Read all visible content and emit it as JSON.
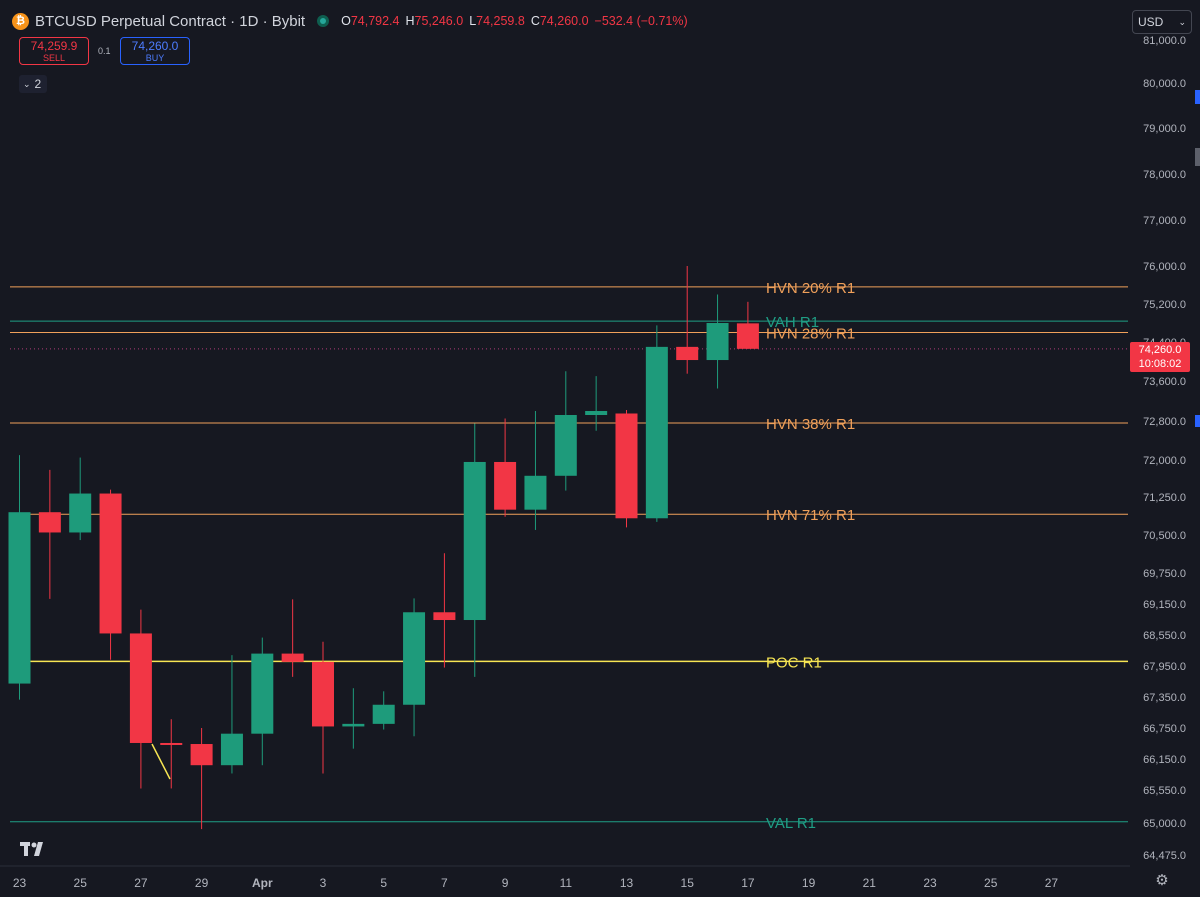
{
  "header": {
    "icon_glyph": "₿",
    "title": "BTCUSD Perpetual Contract · 1D · Bybit",
    "ohlc": {
      "o_label": "O",
      "o": "74,792.4",
      "h_label": "H",
      "h": "75,246.0",
      "l_label": "L",
      "l": "74,259.8",
      "c_label": "C",
      "c": "74,260.0",
      "change": "−532.4 (−0.71%)"
    }
  },
  "trade": {
    "sell_price": "74,259.9",
    "sell_label": "SELL",
    "spread": "0.1",
    "buy_price": "74,260.0",
    "buy_label": "BUY"
  },
  "indicators_toggle": {
    "count": "2"
  },
  "currency": {
    "selected": "USD"
  },
  "last_price": {
    "price": "74,260.0",
    "countdown": "10:08:02"
  },
  "icons": {
    "chevron": "chevron-down-icon",
    "logo": "tradingview-logo",
    "settings": "gear-icon"
  },
  "colors": {
    "background": "#161821",
    "up": "#1e9b7b",
    "down": "#f23645",
    "hvn_line": "#f0a05a",
    "poc_line": "#f7e553",
    "va_line": "#1f9e85"
  },
  "chart_data": {
    "type": "candlestick",
    "title": "BTCUSD Perpetual Contract · 1D · Bybit",
    "y_scale": "piecewise (non-uniform tick spacing)",
    "y_ticks": [
      {
        "label": "81,000.0",
        "value": 81000
      },
      {
        "label": "80,000.0",
        "value": 80000
      },
      {
        "label": "79,000.0",
        "value": 79000
      },
      {
        "label": "78,000.0",
        "value": 78000
      },
      {
        "label": "77,000.0",
        "value": 77000
      },
      {
        "label": "76,000.0",
        "value": 76000
      },
      {
        "label": "75,200.0",
        "value": 75200
      },
      {
        "label": "74,400.0",
        "value": 74400
      },
      {
        "label": "73,600.0",
        "value": 73600
      },
      {
        "label": "72,800.0",
        "value": 72800
      },
      {
        "label": "72,000.0",
        "value": 72000
      },
      {
        "label": "71,250.0",
        "value": 71250
      },
      {
        "label": "70,500.0",
        "value": 70500
      },
      {
        "label": "69,750.0",
        "value": 69750
      },
      {
        "label": "69,150.0",
        "value": 69150
      },
      {
        "label": "68,550.0",
        "value": 68550
      },
      {
        "label": "67,950.0",
        "value": 67950
      },
      {
        "label": "67,350.0",
        "value": 67350
      },
      {
        "label": "66,750.0",
        "value": 66750
      },
      {
        "label": "66,150.0",
        "value": 66150
      },
      {
        "label": "65,550.0",
        "value": 65550
      },
      {
        "label": "65,000.0",
        "value": 65000
      },
      {
        "label": "64,475.0",
        "value": 64475
      }
    ],
    "x_ticks": [
      "23",
      "25",
      "27",
      "29",
      "Apr",
      "3",
      "5",
      "7",
      "9",
      "11",
      "13",
      "15",
      "17",
      "19",
      "21",
      "23",
      "25",
      "27"
    ],
    "candles": [
      {
        "day": "Mar 23",
        "o": 67610,
        "h": 72100,
        "l": 67300,
        "c": 70950
      },
      {
        "day": "Mar 24",
        "o": 70950,
        "h": 71800,
        "l": 69250,
        "c": 70550
      },
      {
        "day": "Mar 25",
        "o": 70550,
        "h": 72050,
        "l": 70400,
        "c": 71320
      },
      {
        "day": "Mar 26",
        "o": 71320,
        "h": 71400,
        "l": 68070,
        "c": 68580
      },
      {
        "day": "Mar 27",
        "o": 68580,
        "h": 69040,
        "l": 65580,
        "c": 66460
      },
      {
        "day": "Mar 28",
        "o": 66460,
        "h": 66920,
        "l": 65580,
        "c": 66440
      },
      {
        "day": "Mar 29",
        "o": 66440,
        "h": 66750,
        "l": 64900,
        "c": 66030
      },
      {
        "day": "Mar 30",
        "o": 66030,
        "h": 68160,
        "l": 65870,
        "c": 66640
      },
      {
        "day": "Mar 31",
        "o": 66640,
        "h": 68500,
        "l": 66030,
        "c": 68190
      },
      {
        "day": "Apr 1",
        "o": 68190,
        "h": 69240,
        "l": 67740,
        "c": 68030
      },
      {
        "day": "Apr 2",
        "o": 68030,
        "h": 68420,
        "l": 65870,
        "c": 66780
      },
      {
        "day": "Apr 3",
        "o": 66780,
        "h": 67520,
        "l": 66350,
        "c": 66830
      },
      {
        "day": "Apr 4",
        "o": 66830,
        "h": 67460,
        "l": 66720,
        "c": 67200
      },
      {
        "day": "Apr 5",
        "o": 67200,
        "h": 69260,
        "l": 66590,
        "c": 68990
      },
      {
        "day": "Apr 6",
        "o": 68990,
        "h": 70140,
        "l": 67920,
        "c": 68840
      },
      {
        "day": "Apr 7",
        "o": 68840,
        "h": 72750,
        "l": 67740,
        "c": 71960
      },
      {
        "day": "Apr 8",
        "o": 71960,
        "h": 72850,
        "l": 70860,
        "c": 71000
      },
      {
        "day": "Apr 9",
        "o": 71000,
        "h": 73000,
        "l": 70600,
        "c": 71680
      },
      {
        "day": "Apr 10",
        "o": 71680,
        "h": 73800,
        "l": 71380,
        "c": 72920
      },
      {
        "day": "Apr 11",
        "o": 72920,
        "h": 73700,
        "l": 72600,
        "c": 73000
      },
      {
        "day": "Apr 12",
        "o": 72950,
        "h": 73020,
        "l": 70650,
        "c": 70830
      },
      {
        "day": "Apr 13",
        "o": 70830,
        "h": 74750,
        "l": 70760,
        "c": 74300
      },
      {
        "day": "Apr 14",
        "o": 74300,
        "h": 76000,
        "l": 73750,
        "c": 74030
      },
      {
        "day": "Apr 15",
        "o": 74030,
        "h": 75400,
        "l": 73450,
        "c": 74800
      },
      {
        "day": "Apr 16",
        "o": 74792.4,
        "h": 75246.0,
        "l": 74259.8,
        "c": 74260.0
      }
    ],
    "levels": [
      {
        "label": "HVN 20% R1",
        "value": 75560,
        "kind": "hvn"
      },
      {
        "label": "VAH R1",
        "value": 74840,
        "kind": "va"
      },
      {
        "label": "HVN 28% R1",
        "value": 74600,
        "kind": "hvn"
      },
      {
        "label": "HVN 38% R1",
        "value": 72760,
        "kind": "hvn"
      },
      {
        "label": "HVN 71% R1",
        "value": 70910,
        "kind": "hvn"
      },
      {
        "label": "POC R1",
        "value": 68040,
        "kind": "poc"
      },
      {
        "label": "VAL R1",
        "value": 65020,
        "kind": "va"
      }
    ],
    "last_price": 74260.0,
    "grid": false,
    "legend": "none"
  }
}
